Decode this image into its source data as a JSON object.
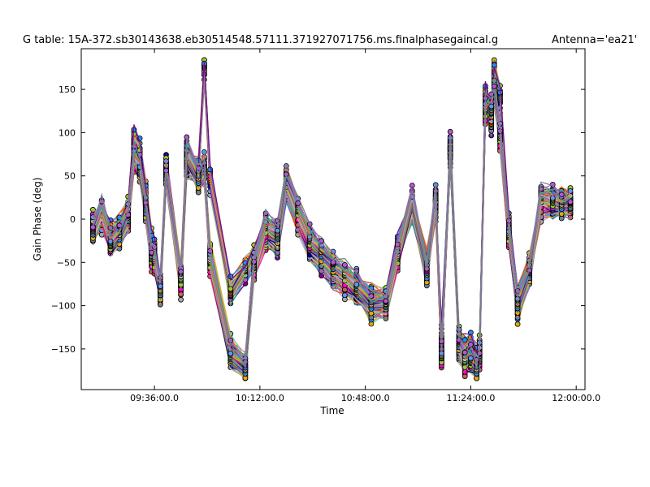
{
  "chart_data": {
    "type": "line",
    "title": "G table: 15A-372.sb30143638.eb30514548.57111.371927071756.ms.finalphasegaincal.g",
    "subtitle": "Antenna='ea21'",
    "xlabel": "Time",
    "ylabel": "Gain Phase (deg)",
    "x_ticks": [
      "09:36:00.0",
      "10:12:00.0",
      "10:48:00.0",
      "11:24:00.0",
      "12:00:00.0"
    ],
    "y_ticks": [
      "150",
      "100",
      "50",
      "0",
      "−50",
      "−100",
      "−150"
    ],
    "xlim": [
      "09:11:00",
      "12:03:00"
    ],
    "ylim": [
      -197,
      197
    ],
    "grid": false,
    "legend": "none",
    "series_colors": [
      "#FF00CC",
      "#E8B0A0",
      "#5FD3A8",
      "#E6A800",
      "#4169E1",
      "#8B4513",
      "#9ACD32",
      "#A9A9A9",
      "#FF4500",
      "#1E90FF",
      "#800080",
      "#20B2AA",
      "#DAA520",
      "#6495ED",
      "#CD5C5C",
      "#3CB371",
      "#BA55D3",
      "#708090",
      "#D2B48C",
      "#000080"
    ],
    "series": [
      {
        "x": [
          "09:15",
          "09:18",
          "09:21",
          "09:24",
          "09:27",
          "09:29",
          "09:31",
          "09:33",
          "09:35",
          "09:36",
          "09:38",
          "09:40",
          "09:45",
          "09:47",
          "09:51",
          "09:53",
          "09:55",
          "10:02",
          "10:07",
          "10:10",
          "10:14",
          "10:18",
          "10:21",
          "10:25",
          "10:29",
          "10:33",
          "10:37",
          "10:41",
          "10:45",
          "10:50",
          "10:55",
          "10:59",
          "11:04",
          "11:09",
          "11:12",
          "11:14",
          "11:17",
          "11:20",
          "11:22",
          "11:24",
          "11:26",
          "11:27",
          "11:29",
          "11:31",
          "11:32",
          "11:34",
          "11:37",
          "11:40",
          "11:44",
          "11:48",
          "11:52",
          "11:55",
          "11:58"
        ],
        "y": [
          -10,
          5,
          -25,
          -15,
          5,
          80,
          65,
          15,
          -35,
          -45,
          -82,
          60,
          -65,
          70,
          50,
          55,
          -40,
          -150,
          -170,
          -50,
          -20,
          -25,
          40,
          5,
          -30,
          -45,
          -60,
          -70,
          -75,
          -105,
          -95,
          -40,
          15,
          -60,
          20,
          -155,
          80,
          -150,
          -160,
          -160,
          -170,
          -155,
          130,
          120,
          150,
          100,
          -15,
          -105,
          -60,
          20,
          15,
          20,
          20
        ]
      },
      {
        "x": [
          "09:15",
          "09:18",
          "09:21",
          "09:24",
          "09:27",
          "09:29",
          "09:31",
          "09:33",
          "09:35",
          "09:36",
          "09:38",
          "09:40",
          "09:45",
          "09:47",
          "09:51",
          "09:53",
          "09:55",
          "10:02",
          "10:07",
          "10:10",
          "10:14",
          "10:18",
          "10:21",
          "10:25",
          "10:29",
          "10:33",
          "10:37",
          "10:41",
          "10:45",
          "10:50",
          "10:55",
          "10:59",
          "11:04",
          "11:09",
          "11:12",
          "11:14",
          "11:17",
          "11:20",
          "11:22",
          "11:24",
          "11:26",
          "11:27",
          "11:29",
          "11:31",
          "11:32",
          "11:34",
          "11:37",
          "11:40",
          "11:44",
          "11:48",
          "11:52",
          "11:55",
          "11:58"
        ],
        "y": [
          -5,
          0,
          -20,
          -10,
          10,
          90,
          75,
          30,
          -25,
          -40,
          -80,
          55,
          -75,
          60,
          55,
          175,
          45,
          -85,
          -60,
          -45,
          -15,
          -30,
          35,
          0,
          -35,
          -50,
          -65,
          -75,
          -85,
          -90,
          -95,
          -35,
          10,
          -50,
          15,
          -140,
          75,
          -140,
          -150,
          -150,
          -160,
          -150,
          140,
          110,
          170,
          140,
          -10,
          -95,
          -55,
          15,
          15,
          20,
          20
        ]
      },
      {
        "x": [
          "09:15",
          "09:18",
          "09:21",
          "09:24",
          "09:27",
          "09:29",
          "09:31",
          "09:33",
          "09:35",
          "09:36",
          "09:38",
          "09:40",
          "09:45",
          "09:47",
          "09:51",
          "09:53",
          "09:55",
          "10:02",
          "10:07",
          "10:10",
          "10:14",
          "10:18",
          "10:21",
          "10:25",
          "10:29",
          "10:33",
          "10:37",
          "10:41",
          "10:45",
          "10:50",
          "10:55",
          "10:59",
          "11:04",
          "11:09",
          "11:12",
          "11:14",
          "11:17",
          "11:20",
          "11:22",
          "11:24",
          "11:26",
          "11:27",
          "11:29",
          "11:31",
          "11:32",
          "11:34",
          "11:37",
          "11:40",
          "11:44",
          "11:48",
          "11:52",
          "11:55",
          "11:58"
        ],
        "y": [
          -15,
          10,
          -30,
          -20,
          0,
          70,
          55,
          10,
          -45,
          -50,
          -85,
          50,
          -70,
          75,
          45,
          60,
          -50,
          -160,
          -175,
          -55,
          -10,
          -20,
          45,
          10,
          -25,
          -40,
          -55,
          -65,
          -80,
          -100,
          -100,
          -45,
          20,
          -65,
          25,
          -160,
          85,
          -145,
          -165,
          -165,
          -175,
          -160,
          125,
          125,
          145,
          95,
          -20,
          -100,
          -65,
          25,
          20,
          15,
          15
        ]
      }
    ]
  }
}
